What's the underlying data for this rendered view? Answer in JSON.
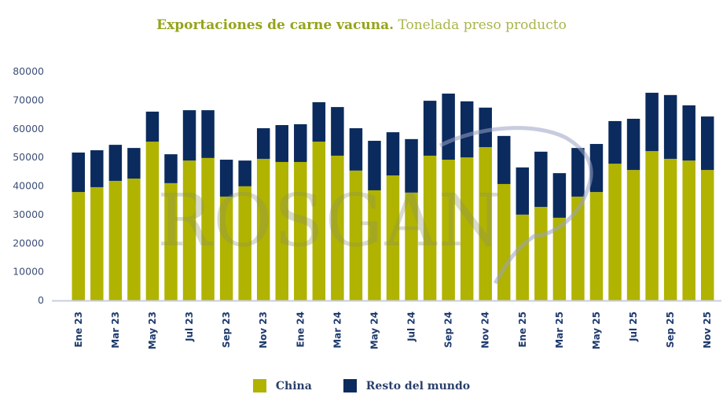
{
  "colors": {
    "china": "#b0b300",
    "resto": "#0b2b5e",
    "axis": "#c9cde0",
    "title_bold": "#95a41a"
  },
  "title": {
    "bold": "Exportaciones de carne vacuna.",
    "light": "Tonelada preso producto"
  },
  "watermark": "ROSGAN",
  "legend": [
    {
      "label": "China",
      "series": "china"
    },
    {
      "label": "Resto del mundo",
      "series": "resto"
    }
  ],
  "chart_data": {
    "type": "bar",
    "stacked": true,
    "title": "Exportaciones de carne vacuna. Tonelada preso producto",
    "xlabel": "",
    "ylabel": "",
    "ylim": [
      0,
      80000
    ],
    "yticks": [
      0,
      10000,
      20000,
      30000,
      40000,
      50000,
      60000,
      70000,
      80000
    ],
    "grid": false,
    "legend_position": "bottom",
    "categories": [
      "Ene 23",
      "Feb 23",
      "Mar 23",
      "Abr 23",
      "May 23",
      "Jun 23",
      "Jul 23",
      "Ago 23",
      "Sep 23",
      "Oct 23",
      "Nov 23",
      "Dic 23",
      "Ene 24",
      "Feb 24",
      "Mar 24",
      "Abr 24",
      "May 24",
      "Jun 24",
      "Jul 24",
      "Ago 24",
      "Sep 24",
      "Oct 24",
      "Nov 24",
      "Dic 24",
      "Ene 25",
      "Feb 25",
      "Mar 25",
      "Abr 25",
      "May 25",
      "Jun 25",
      "Jul 25",
      "Ago 25",
      "Sep 25",
      "Oct 25",
      "Nov 25"
    ],
    "tick_labels": [
      "Ene 23",
      "",
      "Mar 23",
      "",
      "May 23",
      "",
      "Jul 23",
      "",
      "Sep 23",
      "",
      "Nov 23",
      "",
      "Ene 24",
      "",
      "Mar 24",
      "",
      "May 24",
      "",
      "Jul 24",
      "",
      "Sep 24",
      "",
      "Nov 24",
      "",
      "Ene 25",
      "",
      "Mar 25",
      "",
      "May 25",
      "",
      "Jul 25",
      "",
      "Sep 25",
      "",
      "Nov 25"
    ],
    "series": [
      {
        "name": "China",
        "key": "china",
        "values": [
          37900,
          39600,
          41800,
          42600,
          55500,
          41000,
          48900,
          49800,
          36300,
          39900,
          49500,
          48400,
          48400,
          55500,
          50600,
          45400,
          38500,
          43700,
          37700,
          50600,
          49200,
          50000,
          53600,
          40700,
          30000,
          32700,
          28900,
          36300,
          37900,
          47800,
          45600,
          52200,
          49500,
          48900,
          45600
        ]
      },
      {
        "name": "Resto del mundo",
        "key": "resto",
        "values": [
          13800,
          12900,
          12600,
          10700,
          10500,
          10100,
          17600,
          16700,
          12900,
          9000,
          10700,
          12900,
          13200,
          13800,
          17000,
          14800,
          17300,
          15100,
          18700,
          19200,
          23100,
          19600,
          13800,
          16800,
          16500,
          19300,
          15600,
          17000,
          16800,
          14900,
          17900,
          20400,
          22300,
          19300,
          18700
        ]
      }
    ]
  }
}
